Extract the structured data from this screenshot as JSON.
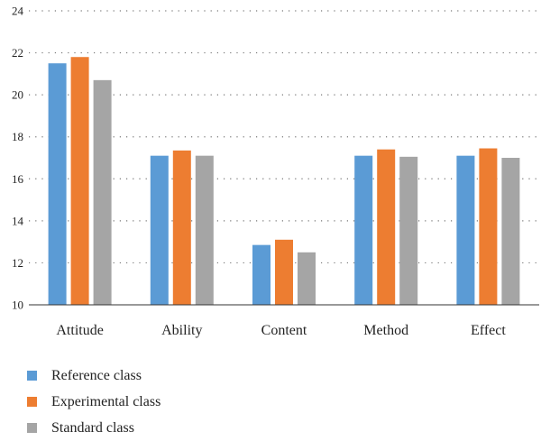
{
  "chart_data": {
    "type": "bar",
    "categories": [
      "Attitude",
      "Ability",
      "Content",
      "Method",
      "Effect"
    ],
    "series": [
      {
        "name": "Reference class",
        "color": "#5b9bd5",
        "values": [
          21.5,
          17.1,
          12.85,
          17.1,
          17.1
        ]
      },
      {
        "name": "Experimental class",
        "color": "#ed7d31",
        "values": [
          21.8,
          17.35,
          13.1,
          17.4,
          17.45
        ]
      },
      {
        "name": "Standard class",
        "color": "#a5a5a5",
        "values": [
          20.7,
          17.1,
          12.5,
          17.05,
          17.0
        ]
      }
    ],
    "ylim": [
      10,
      24
    ],
    "yticks": [
      10,
      12,
      14,
      16,
      18,
      20,
      22,
      24
    ],
    "grid": true,
    "legend_position": "bottom-left"
  }
}
